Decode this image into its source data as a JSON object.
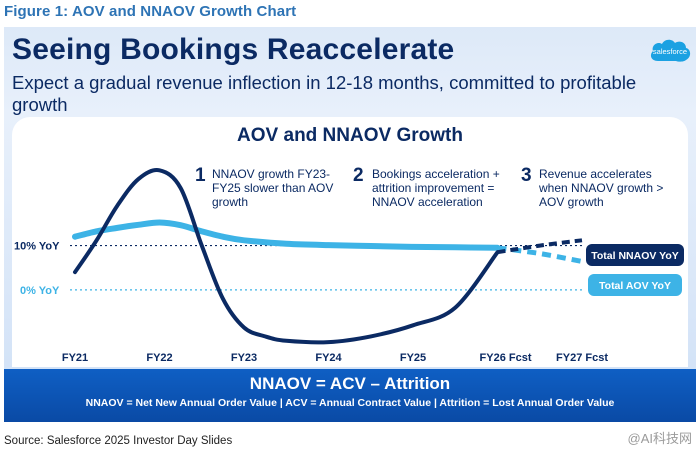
{
  "figure_title": "Figure 1: AOV and NNAOV Growth Chart",
  "slide": {
    "headline": "Seeing Bookings Reaccelerate",
    "subheadline": "Expect a gradual revenue inflection in 12-18 months, committed to profitable growth",
    "logo_text": "salesforce"
  },
  "notes": [
    {
      "num": "1",
      "lines": [
        "NNAOV growth FY23-",
        "FY25 slower than AOV",
        "growth"
      ]
    },
    {
      "num": "2",
      "lines": [
        "Bookings acceleration +",
        "attrition improvement =",
        "NNAOV acceleration"
      ]
    },
    {
      "num": "3",
      "lines": [
        "Revenue accelerates",
        "when NNAOV growth >",
        "AOV growth"
      ]
    }
  ],
  "footer": {
    "equation": "NNAOV = ACV – Attrition",
    "definitions": "NNAOV = Net New Annual Order Value  |  ACV = Annual Contract Value  |  Attrition = Lost Annual Order Value"
  },
  "source": "Source: Salesforce 2025 Investor Day Slides",
  "watermark": "@AI科技网",
  "colors": {
    "nnaov": "#0b2a63",
    "aov": "#3db3e6",
    "ref_10": "#0b2a63",
    "ref_0": "#3db3e6"
  },
  "chart_data": {
    "type": "line",
    "title": "AOV and NNAOV Growth",
    "x": [
      0,
      0.25,
      0.5,
      0.75,
      1,
      1.25,
      1.5,
      1.75,
      2,
      2.25,
      2.5,
      3,
      3.5,
      4,
      4.5,
      5,
      5.5,
      6
    ],
    "categories": [
      "FY21",
      "FY22",
      "FY23",
      "FY24",
      "FY25",
      "FY26 Fcst",
      "FY27 Fcst"
    ],
    "ylim": [
      -12,
      30
    ],
    "reference_lines": [
      {
        "label": "10% YoY",
        "value": 10
      },
      {
        "label": "0% YoY",
        "value": 0
      }
    ],
    "series": [
      {
        "name": "Total AOV YoY",
        "x": [
          0,
          0.25,
          0.5,
          0.75,
          1,
          1.25,
          1.5,
          1.75,
          2,
          2.5,
          3,
          3.5,
          4,
          4.5,
          5,
          5.5,
          6
        ],
        "values": [
          12.0,
          13.2,
          14.0,
          14.7,
          15.2,
          14.6,
          13.2,
          12.0,
          11.2,
          10.4,
          10.1,
          9.9,
          9.7,
          9.6,
          9.5,
          8.2,
          6.4
        ],
        "forecast_from_x": 5
      },
      {
        "name": "Total NNAOV YoY",
        "x": [
          0,
          0.25,
          0.5,
          0.75,
          1,
          1.25,
          1.5,
          1.75,
          2,
          2.25,
          2.5,
          3,
          3.5,
          4,
          4.5,
          5,
          5.5,
          6
        ],
        "values": [
          4.0,
          11.0,
          19.0,
          25.0,
          27.0,
          23.0,
          10.0,
          -2.0,
          -8.5,
          -10.5,
          -11.5,
          -11.8,
          -10.5,
          -8.0,
          -4.0,
          8.5,
          10.0,
          11.2
        ],
        "forecast_from_x": 5
      }
    ]
  }
}
